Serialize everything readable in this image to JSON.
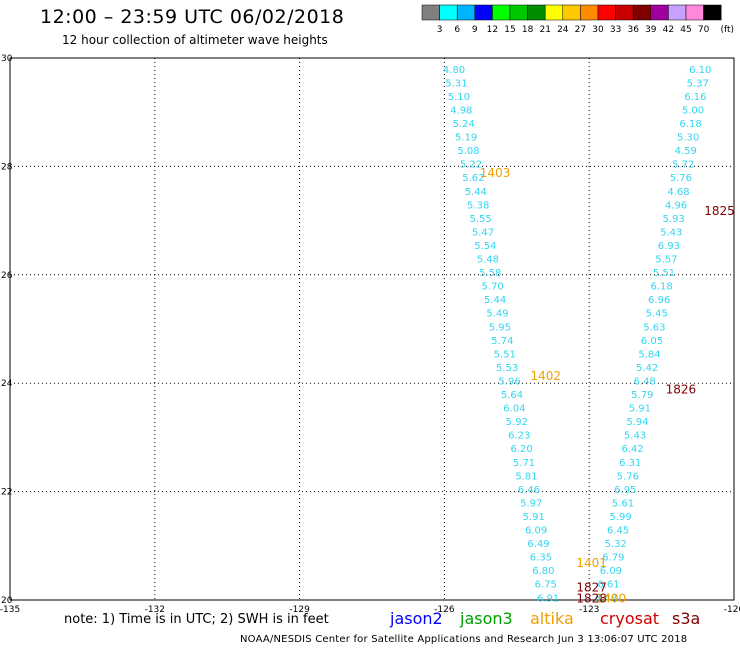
{
  "header": {
    "title": "12:00 – 23:59 UTC 06/02/2018",
    "subtitle": "12 hour collection of altimeter wave heights"
  },
  "legend": {
    "unit": "(ft)",
    "items": [
      {
        "color": "#808080",
        "label": "3"
      },
      {
        "color": "#00ffff",
        "label": "6"
      },
      {
        "color": "#00b4ff",
        "label": "9"
      },
      {
        "color": "#0000ff",
        "label": "12"
      },
      {
        "color": "#00ff00",
        "label": "15"
      },
      {
        "color": "#00c800",
        "label": "18"
      },
      {
        "color": "#008c00",
        "label": "21"
      },
      {
        "color": "#ffff00",
        "label": "24"
      },
      {
        "color": "#ffc800",
        "label": "27"
      },
      {
        "color": "#ff8c00",
        "label": "30"
      },
      {
        "color": "#ff0000",
        "label": "33"
      },
      {
        "color": "#c80000",
        "label": "36"
      },
      {
        "color": "#800000",
        "label": "39"
      },
      {
        "color": "#a000a0",
        "label": "42"
      },
      {
        "color": "#c8a0ff",
        "label": "45"
      },
      {
        "color": "#ff88dd",
        "label": "70"
      },
      {
        "color": "#000000",
        "label": ""
      }
    ]
  },
  "map": {
    "lon_ticks": [
      "-135",
      "-132",
      "-129",
      "-126",
      "-123",
      "-120"
    ],
    "lat_ticks": [
      "20",
      "22",
      "24",
      "26",
      "28",
      "30"
    ],
    "lon_range": [
      -135,
      -120
    ],
    "lat_range": [
      20,
      30
    ],
    "value_color": "#33d6f0",
    "track_west": [
      {
        "lat": 29.8,
        "lon": -125.8,
        "v": "4.80"
      },
      {
        "lat": 29.55,
        "lon": -125.75,
        "v": "5.31"
      },
      {
        "lat": 29.3,
        "lon": -125.7,
        "v": "5.10"
      },
      {
        "lat": 29.05,
        "lon": -125.65,
        "v": "4.98"
      },
      {
        "lat": 28.8,
        "lon": -125.6,
        "v": "5.24"
      },
      {
        "lat": 28.55,
        "lon": -125.55,
        "v": "5.19"
      },
      {
        "lat": 28.3,
        "lon": -125.5,
        "v": "5.08"
      },
      {
        "lat": 28.05,
        "lon": -125.45,
        "v": "5.22"
      },
      {
        "lat": 27.8,
        "lon": -125.4,
        "v": "5.62"
      },
      {
        "lat": 27.55,
        "lon": -125.35,
        "v": "5.44"
      },
      {
        "lat": 27.3,
        "lon": -125.3,
        "v": "5.38"
      },
      {
        "lat": 27.05,
        "lon": -125.25,
        "v": "5.55"
      },
      {
        "lat": 26.8,
        "lon": -125.2,
        "v": "5.47"
      },
      {
        "lat": 26.55,
        "lon": -125.15,
        "v": "5.54"
      },
      {
        "lat": 26.3,
        "lon": -125.1,
        "v": "5.48"
      },
      {
        "lat": 26.05,
        "lon": -125.05,
        "v": "5.58"
      },
      {
        "lat": 25.8,
        "lon": -125.0,
        "v": "5.70"
      },
      {
        "lat": 25.55,
        "lon": -124.95,
        "v": "5.44"
      },
      {
        "lat": 25.3,
        "lon": -124.9,
        "v": "5.49"
      },
      {
        "lat": 25.05,
        "lon": -124.85,
        "v": "5.95"
      },
      {
        "lat": 24.8,
        "lon": -124.8,
        "v": "5.74"
      },
      {
        "lat": 24.55,
        "lon": -124.75,
        "v": "5.51"
      },
      {
        "lat": 24.3,
        "lon": -124.7,
        "v": "5.53"
      },
      {
        "lat": 24.05,
        "lon": -124.65,
        "v": "5.96"
      },
      {
        "lat": 23.8,
        "lon": -124.6,
        "v": "5.64"
      },
      {
        "lat": 23.55,
        "lon": -124.55,
        "v": "6.04"
      },
      {
        "lat": 23.3,
        "lon": -124.5,
        "v": "5.92"
      },
      {
        "lat": 23.05,
        "lon": -124.45,
        "v": "6.23"
      },
      {
        "lat": 22.8,
        "lon": -124.4,
        "v": "6.20"
      },
      {
        "lat": 22.55,
        "lon": -124.35,
        "v": "5.71"
      },
      {
        "lat": 22.3,
        "lon": -124.3,
        "v": "5.81"
      },
      {
        "lat": 22.05,
        "lon": -124.25,
        "v": "6.46"
      },
      {
        "lat": 21.8,
        "lon": -124.2,
        "v": "5.97"
      },
      {
        "lat": 21.55,
        "lon": -124.15,
        "v": "5.91"
      },
      {
        "lat": 21.3,
        "lon": -124.1,
        "v": "6.09"
      },
      {
        "lat": 21.05,
        "lon": -124.05,
        "v": "6.49"
      },
      {
        "lat": 20.8,
        "lon": -124.0,
        "v": "6.35"
      },
      {
        "lat": 20.55,
        "lon": -123.95,
        "v": "6.80"
      },
      {
        "lat": 20.3,
        "lon": -123.9,
        "v": "6.75"
      },
      {
        "lat": 20.05,
        "lon": -123.85,
        "v": "6.91"
      }
    ],
    "track_east": [
      {
        "lat": 29.8,
        "lon": -120.7,
        "v": "6.10"
      },
      {
        "lat": 29.55,
        "lon": -120.75,
        "v": "5.37"
      },
      {
        "lat": 29.3,
        "lon": -120.8,
        "v": "6.16"
      },
      {
        "lat": 29.05,
        "lon": -120.85,
        "v": "5.00"
      },
      {
        "lat": 28.8,
        "lon": -120.9,
        "v": "6.18"
      },
      {
        "lat": 28.55,
        "lon": -120.95,
        "v": "5.30"
      },
      {
        "lat": 28.3,
        "lon": -121.0,
        "v": "4.59"
      },
      {
        "lat": 28.05,
        "lon": -121.05,
        "v": "5.72"
      },
      {
        "lat": 27.8,
        "lon": -121.1,
        "v": "5.76"
      },
      {
        "lat": 27.55,
        "lon": -121.15,
        "v": "4.68"
      },
      {
        "lat": 27.3,
        "lon": -121.2,
        "v": "4.96"
      },
      {
        "lat": 27.05,
        "lon": -121.25,
        "v": "5.93"
      },
      {
        "lat": 26.8,
        "lon": -121.3,
        "v": "5.43"
      },
      {
        "lat": 26.55,
        "lon": -121.35,
        "v": "6.93"
      },
      {
        "lat": 26.3,
        "lon": -121.4,
        "v": "5.57"
      },
      {
        "lat": 26.05,
        "lon": -121.45,
        "v": "5.51"
      },
      {
        "lat": 25.8,
        "lon": -121.5,
        "v": "6.18"
      },
      {
        "lat": 25.55,
        "lon": -121.55,
        "v": "6.96"
      },
      {
        "lat": 25.3,
        "lon": -121.6,
        "v": "5.45"
      },
      {
        "lat": 25.05,
        "lon": -121.65,
        "v": "5.63"
      },
      {
        "lat": 24.8,
        "lon": -121.7,
        "v": "6.05"
      },
      {
        "lat": 24.55,
        "lon": -121.75,
        "v": "5.84"
      },
      {
        "lat": 24.3,
        "lon": -121.8,
        "v": "5.42"
      },
      {
        "lat": 24.05,
        "lon": -121.85,
        "v": "6.48"
      },
      {
        "lat": 23.8,
        "lon": -121.9,
        "v": "5.79"
      },
      {
        "lat": 23.55,
        "lon": -121.95,
        "v": "5.91"
      },
      {
        "lat": 23.3,
        "lon": -122.0,
        "v": "5.94"
      },
      {
        "lat": 23.05,
        "lon": -122.05,
        "v": "5.43"
      },
      {
        "lat": 22.8,
        "lon": -122.1,
        "v": "6.42"
      },
      {
        "lat": 22.55,
        "lon": -122.15,
        "v": "6.31"
      },
      {
        "lat": 22.3,
        "lon": -122.2,
        "v": "5.76"
      },
      {
        "lat": 22.05,
        "lon": -122.25,
        "v": "6.95"
      },
      {
        "lat": 21.8,
        "lon": -122.3,
        "v": "5.61"
      },
      {
        "lat": 21.55,
        "lon": -122.35,
        "v": "5.99"
      },
      {
        "lat": 21.3,
        "lon": -122.4,
        "v": "6.45"
      },
      {
        "lat": 21.05,
        "lon": -122.45,
        "v": "5.32"
      },
      {
        "lat": 20.8,
        "lon": -122.5,
        "v": "6.79"
      },
      {
        "lat": 20.55,
        "lon": -122.55,
        "v": "6.09"
      },
      {
        "lat": 20.3,
        "lon": -122.6,
        "v": "6.61"
      },
      {
        "lat": 20.05,
        "lon": -122.65,
        "v": "6.48"
      }
    ],
    "time_labels": [
      {
        "lat": 27.9,
        "lon": -124.95,
        "t": "1403",
        "color": "#f0a000"
      },
      {
        "lat": 24.15,
        "lon": -123.9,
        "t": "1402",
        "color": "#f0a000"
      },
      {
        "lat": 20.7,
        "lon": -122.95,
        "t": "1401",
        "color": "#f0a000"
      },
      {
        "lat": 20.05,
        "lon": -122.55,
        "t": "1400",
        "color": "#f0a000"
      },
      {
        "lat": 27.2,
        "lon": -120.3,
        "t": "1825",
        "color": "#800000"
      },
      {
        "lat": 23.9,
        "lon": -121.1,
        "t": "1826",
        "color": "#800000"
      },
      {
        "lat": 20.25,
        "lon": -122.95,
        "t": "1827",
        "color": "#800000"
      },
      {
        "lat": 20.05,
        "lon": -122.95,
        "t": "1828",
        "color": "#800000"
      }
    ]
  },
  "footer": {
    "note": "note:  1) Time is in UTC;  2) SWH is in feet",
    "satellites": [
      {
        "name": "jason2",
        "color": "#0000ff"
      },
      {
        "name": "jason3",
        "color": "#00a000"
      },
      {
        "name": "altika",
        "color": "#f0a000"
      },
      {
        "name": "cryosat",
        "color": "#d00000"
      },
      {
        "name": "s3a",
        "color": "#800000"
      }
    ],
    "credit": "NOAA/NESDIS Center for Satellite Applications and Research    Jun  3 13:06:07 UTC 2018"
  }
}
